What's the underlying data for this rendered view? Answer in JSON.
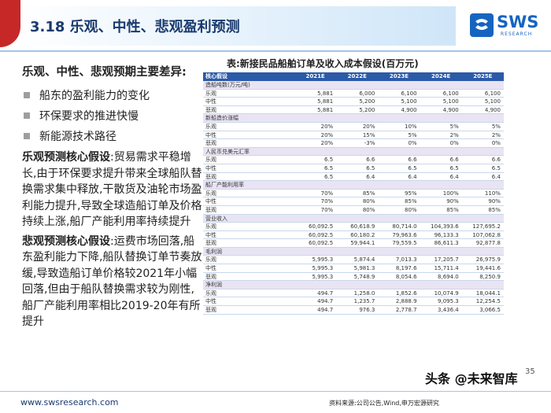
{
  "header": {
    "title": "3.18 乐观、中性、悲观盈利预测",
    "logo_text": "SWS",
    "logo_sub": "RESEARCH",
    "accent_color": "#c62828",
    "brand_color": "#1565c0"
  },
  "left": {
    "heading": "乐观、中性、悲观预期主要差异:",
    "bullets": [
      "船东的盈利能力的变化",
      "环保要求的推进快慢",
      "新能源技术路径"
    ],
    "opt_label": "乐观预测核心假设",
    "opt_text": ":贸易需求平稳增长,由于环保要求提升带来全球船队替换需求集中释放,干散货及油轮市场盈利能力提升,导致全球造船订单及价格持续上涨,船厂产能利用率持续提升",
    "pes_label": "悲观预测核心假设",
    "pes_text": ":运费市场回落,船东盈利能力下降,船队替换订单节奏放缓,导致造船订单价格较2021年小幅回落,但由于船队替换需求较为刚性,船厂产能利用率相比2019-20年有所提升"
  },
  "table": {
    "title": "表:新接民品船舶订单及收入成本假设(百万元)",
    "header": [
      "核心假设",
      "2021E",
      "2022E",
      "2023E",
      "2024E",
      "2025E"
    ],
    "rows": [
      {
        "type": "sec",
        "cells": [
          "造船吨数(万元/吨)",
          "",
          "",
          "",
          "",
          ""
        ]
      },
      {
        "type": "data",
        "cells": [
          "乐观",
          "5,881",
          "6,000",
          "6,100",
          "6,100",
          "6,100"
        ]
      },
      {
        "type": "data",
        "cells": [
          "中性",
          "5,881",
          "5,200",
          "5,100",
          "5,100",
          "5,100"
        ]
      },
      {
        "type": "data",
        "cells": [
          "悲观",
          "5,881",
          "5,200",
          "4,900",
          "4,900",
          "4,900"
        ]
      },
      {
        "type": "sec",
        "cells": [
          "新船造价涨幅",
          "",
          "",
          "",
          "",
          ""
        ]
      },
      {
        "type": "data",
        "cells": [
          "乐观",
          "20%",
          "20%",
          "10%",
          "5%",
          "5%"
        ]
      },
      {
        "type": "data",
        "cells": [
          "中性",
          "20%",
          "15%",
          "5%",
          "2%",
          "2%"
        ]
      },
      {
        "type": "data",
        "cells": [
          "悲观",
          "20%",
          "-3%",
          "0%",
          "0%",
          "0%"
        ]
      },
      {
        "type": "sec",
        "cells": [
          "人民币兑美元汇率",
          "",
          "",
          "",
          "",
          ""
        ]
      },
      {
        "type": "data",
        "cells": [
          "乐观",
          "6.5",
          "6.6",
          "6.6",
          "6.6",
          "6.6"
        ]
      },
      {
        "type": "data",
        "cells": [
          "中性",
          "6.5",
          "6.5",
          "6.5",
          "6.5",
          "6.5"
        ]
      },
      {
        "type": "data",
        "cells": [
          "悲观",
          "6.5",
          "6.4",
          "6.4",
          "6.4",
          "6.4"
        ]
      },
      {
        "type": "sec",
        "cells": [
          "船厂产能利用率",
          "",
          "",
          "",
          "",
          ""
        ]
      },
      {
        "type": "data",
        "cells": [
          "乐观",
          "70%",
          "85%",
          "95%",
          "100%",
          "110%"
        ]
      },
      {
        "type": "data",
        "cells": [
          "中性",
          "70%",
          "80%",
          "85%",
          "90%",
          "90%"
        ]
      },
      {
        "type": "data",
        "cells": [
          "悲观",
          "70%",
          "80%",
          "80%",
          "85%",
          "85%"
        ]
      },
      {
        "type": "sec",
        "cells": [
          "营业收入",
          "",
          "",
          "",
          "",
          ""
        ]
      },
      {
        "type": "data",
        "cells": [
          "乐观",
          "60,092.5",
          "60,618.9",
          "80,714.0",
          "104,393.6",
          "127,695.2"
        ]
      },
      {
        "type": "data",
        "cells": [
          "中性",
          "60,092.5",
          "60,180.2",
          "79,963.6",
          "96,133.3",
          "107,062.8"
        ]
      },
      {
        "type": "data",
        "cells": [
          "悲观",
          "60,092.5",
          "59,944.1",
          "79,559.5",
          "86,611.3",
          "92,877.8"
        ]
      },
      {
        "type": "sec",
        "cells": [
          "毛利润",
          "",
          "",
          "",
          "",
          ""
        ]
      },
      {
        "type": "data",
        "cells": [
          "乐观",
          "5,995.3",
          "5,874.4",
          "7,013.3",
          "17,205.7",
          "26,975.9"
        ]
      },
      {
        "type": "data",
        "cells": [
          "中性",
          "5,995.3",
          "5,981.3",
          "8,197.6",
          "15,711.4",
          "19,441.6"
        ]
      },
      {
        "type": "data",
        "cells": [
          "悲观",
          "5,995.3",
          "5,748.9",
          "8,054.6",
          "8,694.0",
          "8,250.9"
        ]
      },
      {
        "type": "sec",
        "cells": [
          "净利润",
          "",
          "",
          "",
          "",
          ""
        ]
      },
      {
        "type": "data",
        "cells": [
          "乐观",
          "494.7",
          "1,258.0",
          "1,852.6",
          "10,074.9",
          "18,044.1"
        ]
      },
      {
        "type": "data",
        "cells": [
          "中性",
          "494.7",
          "1,235.7",
          "2,888.9",
          "9,095.3",
          "12,254.5"
        ]
      },
      {
        "type": "data",
        "cells": [
          "悲观",
          "494.7",
          "976.3",
          "2,778.7",
          "3,436.4",
          "3,066.5"
        ]
      }
    ],
    "header_color": "#2a5aa8",
    "section_color": "#e9e4f3"
  },
  "footer": {
    "url": "www.swsresearch.com",
    "source": "资料来源:公司公告,Wind,申万宏源研究",
    "page": "35",
    "watermark": "头条 @未来智库"
  }
}
